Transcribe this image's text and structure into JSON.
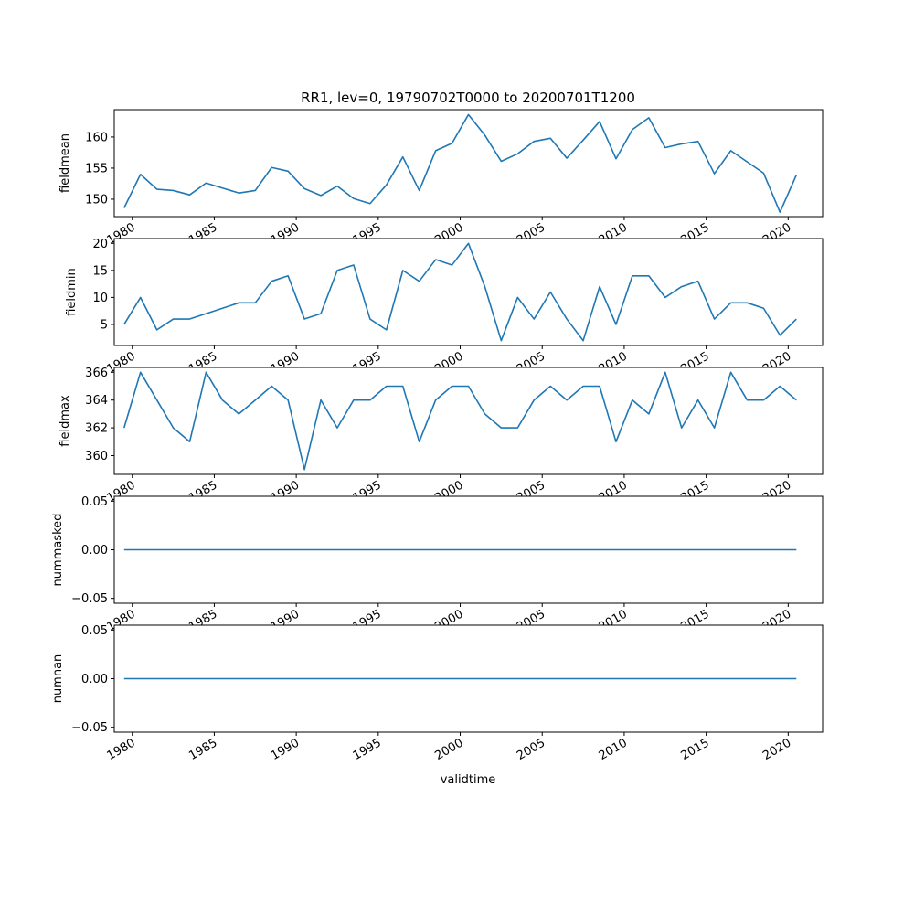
{
  "title": "RR1, lev=0, 19790702T0000 to 20200701T1200",
  "xlabel": "validtime",
  "colors": {
    "line": "#1f77b4"
  },
  "chart_data": {
    "type": "line",
    "x_years": [
      1979.5,
      1980.5,
      1981.5,
      1982.5,
      1983.5,
      1984.5,
      1985.5,
      1986.5,
      1987.5,
      1988.5,
      1989.5,
      1990.5,
      1991.5,
      1992.5,
      1993.5,
      1994.5,
      1995.5,
      1996.5,
      1997.5,
      1998.5,
      1999.5,
      2000.5,
      2001.5,
      2002.5,
      2003.5,
      2004.5,
      2005.5,
      2006.5,
      2007.5,
      2008.5,
      2009.5,
      2010.5,
      2011.5,
      2012.5,
      2013.5,
      2014.5,
      2015.5,
      2016.5,
      2017.5,
      2018.5,
      2019.5,
      2020.5
    ],
    "x_ticks": [
      1980,
      1985,
      1990,
      1995,
      2000,
      2005,
      2010,
      2015,
      2020
    ],
    "x_tick_labels": [
      "1980",
      "1985",
      "1990",
      "1995",
      "2000",
      "2005",
      "2010",
      "2015",
      "2020"
    ],
    "xlim": [
      1978.9,
      2022.1
    ],
    "panels": [
      {
        "ylabel": "fieldmean",
        "yticks": [
          150,
          155,
          160
        ],
        "ytick_labels": [
          "150",
          "155",
          "160"
        ],
        "ylim": [
          147.2,
          164.4
        ],
        "values": [
          148.6,
          154.0,
          151.6,
          151.4,
          150.7,
          152.6,
          151.8,
          151.0,
          151.4,
          155.1,
          154.5,
          151.7,
          150.6,
          152.1,
          150.1,
          149.3,
          152.3,
          156.8,
          151.4,
          157.8,
          159.0,
          163.6,
          160.3,
          156.1,
          157.3,
          159.3,
          159.8,
          156.6,
          159.5,
          162.5,
          156.5,
          161.2,
          163.1,
          158.3,
          158.9,
          159.3,
          154.1,
          157.8,
          156.0,
          154.2,
          147.9,
          153.9
        ]
      },
      {
        "ylabel": "fieldmin",
        "yticks": [
          5,
          10,
          15,
          20
        ],
        "ytick_labels": [
          "5",
          "10",
          "15",
          "20"
        ],
        "ylim": [
          1.1,
          20.9
        ],
        "values": [
          5,
          10,
          4,
          6,
          6,
          7,
          8,
          9,
          9,
          13,
          14,
          6,
          7,
          15,
          16,
          6,
          4,
          15,
          13,
          17,
          16,
          20,
          12,
          2,
          10,
          6,
          11,
          6,
          2,
          12,
          5,
          14,
          14,
          10,
          12,
          13,
          6,
          9,
          9,
          8,
          3,
          6
        ]
      },
      {
        "ylabel": "fieldmax",
        "yticks": [
          360,
          362,
          364,
          366
        ],
        "ytick_labels": [
          "360",
          "362",
          "364",
          "366"
        ],
        "ylim": [
          358.65,
          366.35
        ],
        "values": [
          362,
          366,
          364,
          362,
          361,
          366,
          364,
          363,
          364,
          365,
          364,
          359,
          364,
          362,
          364,
          364,
          365,
          365,
          361,
          364,
          365,
          365,
          363,
          362,
          362,
          364,
          365,
          364,
          365,
          365,
          361,
          364,
          363,
          366,
          362,
          364,
          362,
          366,
          364,
          364,
          365,
          364
        ]
      },
      {
        "ylabel": "nummasked",
        "yticks": [
          -0.05,
          0.0,
          0.05
        ],
        "ytick_labels": [
          "−0.05",
          "0.00",
          "0.05"
        ],
        "ylim": [
          -0.055,
          0.055
        ],
        "values": [
          0,
          0,
          0,
          0,
          0,
          0,
          0,
          0,
          0,
          0,
          0,
          0,
          0,
          0,
          0,
          0,
          0,
          0,
          0,
          0,
          0,
          0,
          0,
          0,
          0,
          0,
          0,
          0,
          0,
          0,
          0,
          0,
          0,
          0,
          0,
          0,
          0,
          0,
          0,
          0,
          0,
          0
        ]
      },
      {
        "ylabel": "numnan",
        "yticks": [
          -0.05,
          0.0,
          0.05
        ],
        "ytick_labels": [
          "−0.05",
          "0.00",
          "0.05"
        ],
        "ylim": [
          -0.055,
          0.055
        ],
        "values": [
          0,
          0,
          0,
          0,
          0,
          0,
          0,
          0,
          0,
          0,
          0,
          0,
          0,
          0,
          0,
          0,
          0,
          0,
          0,
          0,
          0,
          0,
          0,
          0,
          0,
          0,
          0,
          0,
          0,
          0,
          0,
          0,
          0,
          0,
          0,
          0,
          0,
          0,
          0,
          0,
          0,
          0
        ]
      }
    ]
  }
}
